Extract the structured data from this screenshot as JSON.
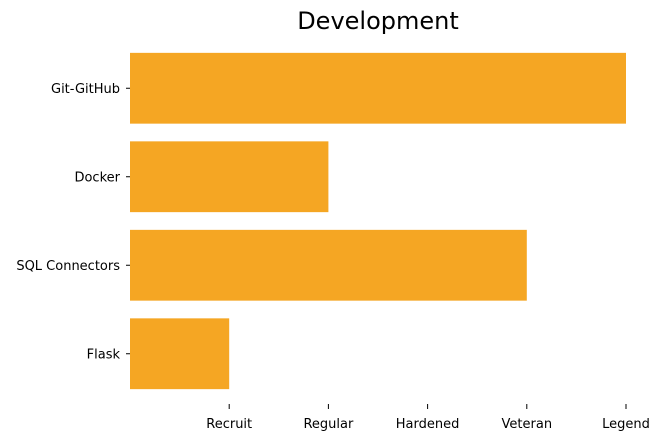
{
  "chart_data": {
    "type": "bar",
    "orientation": "horizontal",
    "title": "Development",
    "xlabel": "",
    "ylabel": "",
    "categories": [
      "Git-GitHub",
      "Docker",
      "SQL Connectors",
      "Flask"
    ],
    "values": [
      5,
      2,
      4,
      1
    ],
    "x_ticks": [
      {
        "value": 1,
        "label": "Recruit"
      },
      {
        "value": 2,
        "label": "Regular"
      },
      {
        "value": 3,
        "label": "Hardened"
      },
      {
        "value": 4,
        "label": "Veteran"
      },
      {
        "value": 5,
        "label": "Legend"
      }
    ],
    "xlim": [
      0,
      5
    ],
    "bar_color": "#F5A623",
    "grid": false,
    "legend": "none"
  }
}
